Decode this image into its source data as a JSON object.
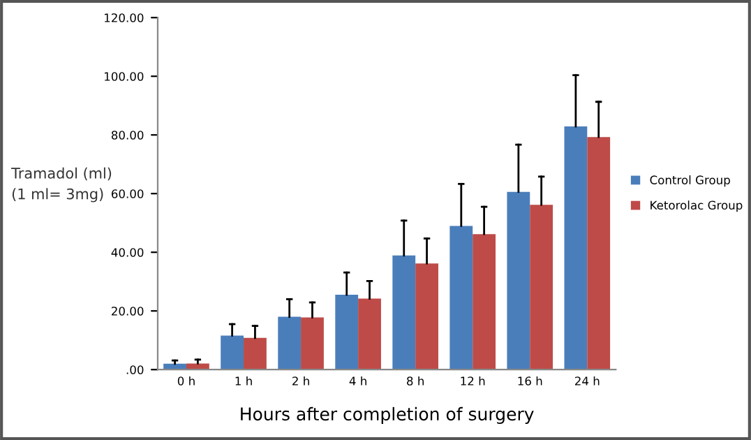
{
  "chart_data": {
    "type": "bar",
    "xlabel": "Hours after completion of surgery",
    "ylabel": "Tramadol (ml)\n(1 ml= 3mg)",
    "categories": [
      "0 h",
      "1 h",
      "2 h",
      "4 h",
      "8 h",
      "12 h",
      "16 h",
      "24 h"
    ],
    "series": [
      {
        "name": "Control Group",
        "color": "#4a7ebb",
        "values": [
          2.0,
          11.6,
          18.0,
          25.5,
          38.9,
          49.0,
          60.6,
          82.9
        ],
        "errors": [
          [
            2.0,
            3.1
          ],
          [
            11.6,
            15.5
          ],
          [
            18.0,
            24.0
          ],
          [
            25.5,
            33.1
          ],
          [
            38.9,
            50.8
          ],
          [
            49.0,
            63.3
          ],
          [
            60.6,
            76.7
          ],
          [
            82.9,
            100.4
          ]
        ]
      },
      {
        "name": "Ketorolac Group",
        "color": "#be4b48",
        "values": [
          2.1,
          10.8,
          17.8,
          24.2,
          36.2,
          46.2,
          56.2,
          79.3
        ],
        "errors": [
          [
            2.1,
            3.4
          ],
          [
            10.8,
            14.9
          ],
          [
            17.8,
            22.9
          ],
          [
            24.2,
            30.2
          ],
          [
            36.2,
            44.7
          ],
          [
            46.2,
            55.5
          ],
          [
            56.2,
            65.8
          ],
          [
            79.3,
            91.3
          ]
        ]
      }
    ],
    "ylim": [
      0,
      120
    ],
    "yticks": [
      {
        "value": 0,
        "label": ".00"
      },
      {
        "value": 20,
        "label": "20.00"
      },
      {
        "value": 40,
        "label": "40.00"
      },
      {
        "value": 60,
        "label": "60.00"
      },
      {
        "value": 80,
        "label": "80.00"
      },
      {
        "value": 100,
        "label": "100.00"
      },
      {
        "value": 120,
        "label": "120.00"
      }
    ],
    "grid": false,
    "legend": "right"
  }
}
